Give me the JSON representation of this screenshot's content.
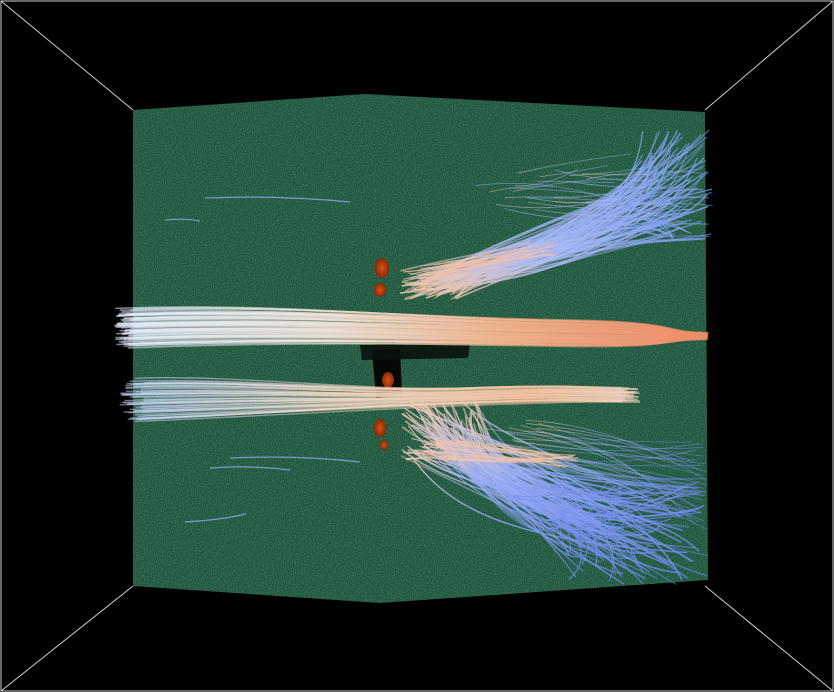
{
  "scene": {
    "background_color": "#000000",
    "box_edge_color": "#cfcfcf",
    "slab_color": "#1e5038",
    "slab_texture_dark": "#143a28",
    "slab_texture_light": "#2c6a4c",
    "isosurface_color": "#b8400c",
    "streamline_colors": {
      "cool": "#6e8cf0",
      "mid": "#dfe6ff",
      "warm": "#f7b890",
      "hot": "#f08a66"
    }
  }
}
